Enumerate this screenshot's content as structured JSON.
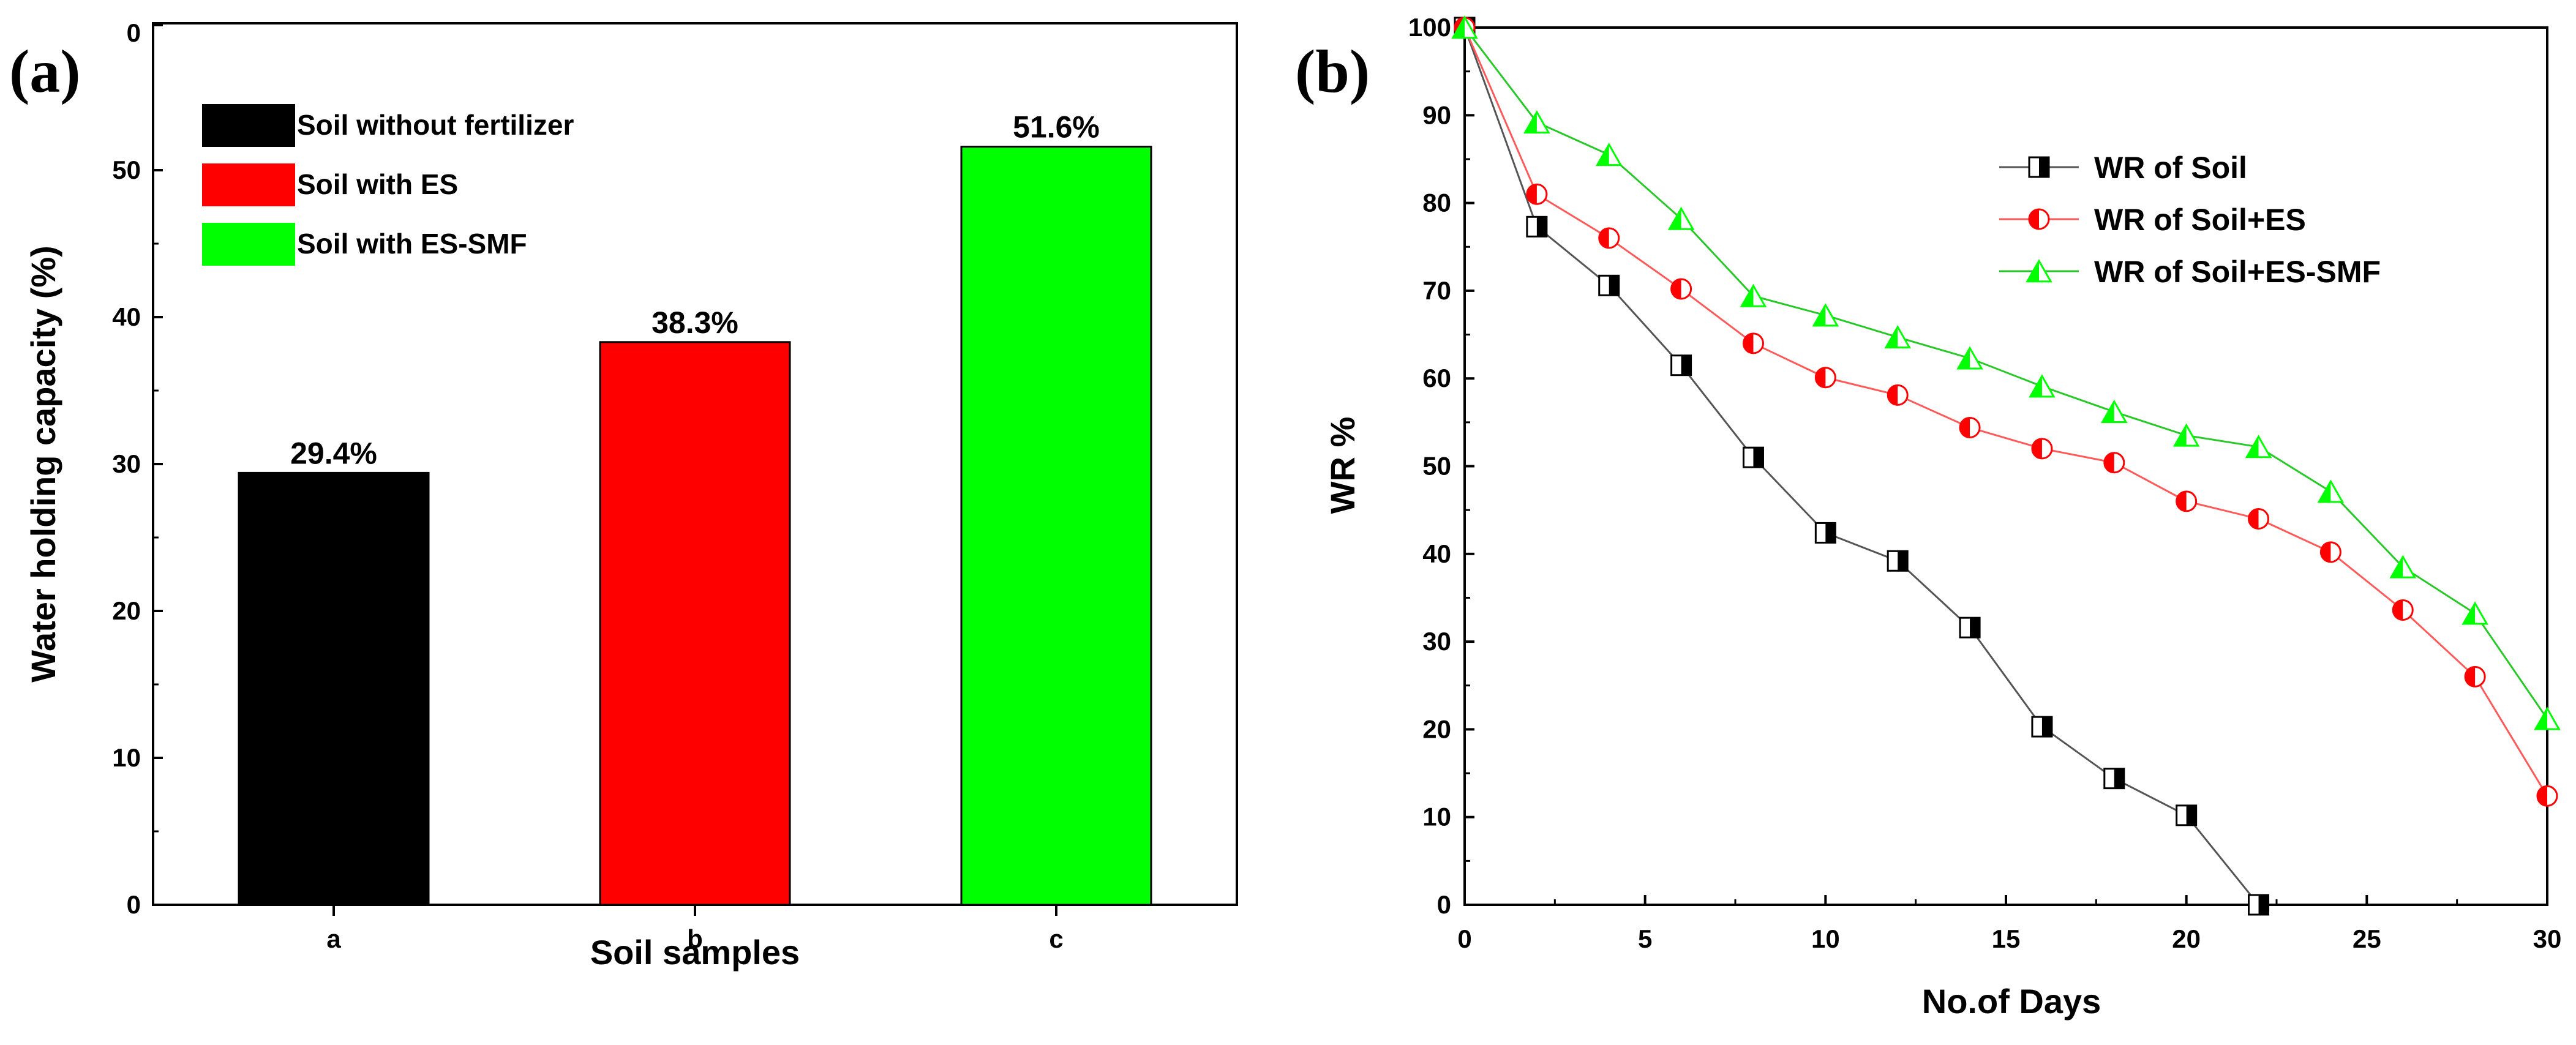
{
  "chart_data": [
    {
      "panel_label": "(a)",
      "type": "bar",
      "categories": [
        "a",
        "b",
        "c"
      ],
      "values": [
        29.4,
        38.3,
        51.6
      ],
      "value_labels": [
        "29.4%",
        "38.3%",
        "51.6%"
      ],
      "colors": [
        "#000000",
        "#ff0000",
        "#00ff00"
      ],
      "legend": [
        "Soil without fertilizer",
        "Soil with ES",
        "Soil with ES-SMF"
      ],
      "legend_position": "top-left",
      "xlabel": "Soil samples",
      "ylabel": "Water holding capacity (%)",
      "ylim": [
        0,
        60
      ],
      "yticks": [
        0,
        10,
        20,
        30,
        40,
        50
      ],
      "top_tick_label": "0"
    },
    {
      "panel_label": "(b)",
      "type": "line",
      "x": [
        0,
        2,
        4,
        6,
        8,
        10,
        12,
        14,
        16,
        18,
        20,
        22,
        24,
        26,
        28,
        30
      ],
      "series": [
        {
          "name": "WR of Soil",
          "marker": "square",
          "color": "#000000",
          "line_color": "#555555",
          "x": [
            0,
            2,
            4,
            6,
            8,
            10,
            12,
            14,
            16,
            18,
            20,
            22
          ],
          "values": [
            100,
            77.3,
            70.6,
            61.5,
            51.0,
            42.4,
            39.2,
            31.6,
            20.3,
            14.4,
            10.2,
            0
          ]
        },
        {
          "name": "WR of Soil+ES",
          "marker": "circle",
          "color": "#ff0000",
          "line_color": "#ff5a5a",
          "x": [
            0,
            2,
            4,
            6,
            8,
            10,
            12,
            14,
            16,
            18,
            20,
            22,
            24,
            26,
            28,
            30
          ],
          "values": [
            100,
            81.0,
            76.0,
            70.2,
            64.0,
            60.1,
            58.1,
            54.4,
            52.0,
            50.4,
            46.0,
            44.0,
            40.2,
            33.6,
            26.0,
            12.4
          ]
        },
        {
          "name": "WR of Soil+ES-SMF",
          "marker": "triangle",
          "color": "#00ff00",
          "line_color": "#28c828",
          "x": [
            0,
            2,
            4,
            6,
            8,
            10,
            12,
            14,
            16,
            18,
            20,
            22,
            24,
            26,
            28,
            30
          ],
          "values": [
            100,
            89.2,
            85.5,
            78.2,
            69.4,
            67.2,
            64.7,
            62.3,
            59.1,
            56.2,
            53.5,
            52.2,
            47.1,
            38.5,
            33.2,
            21.2
          ]
        }
      ],
      "legend_position": "top-right",
      "xlabel": "No.of Days",
      "ylabel": "WR %",
      "xlim": [
        0,
        30
      ],
      "ylim": [
        0,
        100
      ],
      "xticks": [
        0,
        5,
        10,
        15,
        20,
        25,
        30
      ],
      "yticks": [
        0,
        10,
        20,
        30,
        40,
        50,
        60,
        70,
        80,
        90,
        100
      ]
    }
  ]
}
